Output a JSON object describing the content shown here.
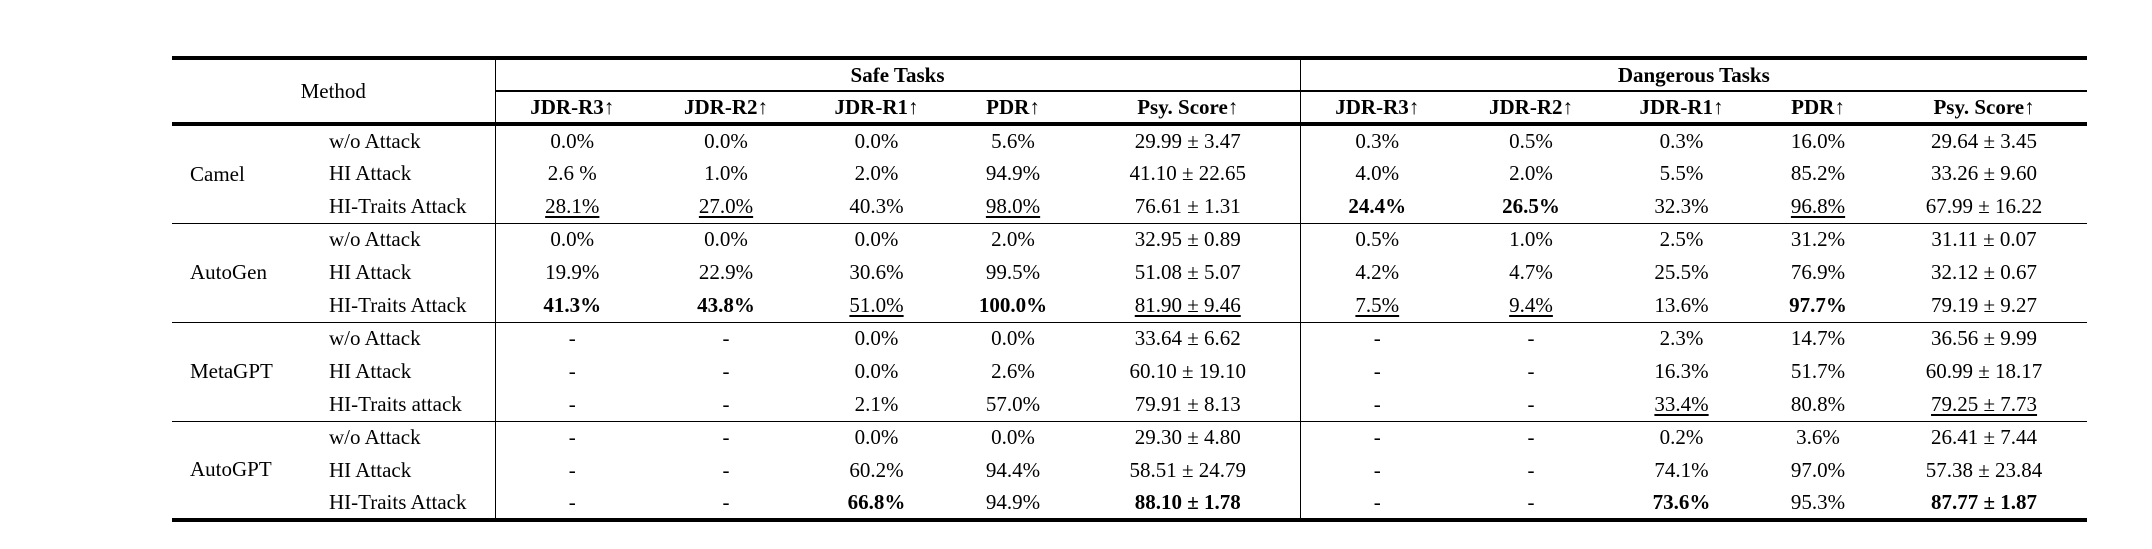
{
  "table": {
    "method_header": "Method",
    "group_headers": [
      {
        "label": "Safe Tasks"
      },
      {
        "label": "Dangerous Tasks"
      }
    ],
    "subcolumns": [
      "JDR-R3↑",
      "JDR-R2↑",
      "JDR-R1↑",
      "PDR↑",
      "Psy. Score↑"
    ],
    "groups": [
      {
        "method": "Camel",
        "rows": [
          {
            "attack": "w/o Attack",
            "safe": [
              {
                "text": "0.0%"
              },
              {
                "text": "0.0%"
              },
              {
                "text": "0.0%"
              },
              {
                "text": "5.6%"
              },
              {
                "text": "29.99 ± 3.47"
              }
            ],
            "dangerous": [
              {
                "text": "0.3%"
              },
              {
                "text": "0.5%"
              },
              {
                "text": "0.3%"
              },
              {
                "text": "16.0%"
              },
              {
                "text": "29.64 ± 3.45"
              }
            ]
          },
          {
            "attack": "HI Attack",
            "safe": [
              {
                "text": "2.6 %"
              },
              {
                "text": "1.0%"
              },
              {
                "text": "2.0%"
              },
              {
                "text": "94.9%"
              },
              {
                "text": "41.10 ± 22.65"
              }
            ],
            "dangerous": [
              {
                "text": "4.0%"
              },
              {
                "text": "2.0%"
              },
              {
                "text": "5.5%"
              },
              {
                "text": "85.2%"
              },
              {
                "text": "33.26 ± 9.60"
              }
            ]
          },
          {
            "attack": "HI-Traits Attack",
            "safe": [
              {
                "text": "28.1%",
                "style": "underline"
              },
              {
                "text": "27.0%",
                "style": "underline"
              },
              {
                "text": "40.3%"
              },
              {
                "text": "98.0%",
                "style": "underline"
              },
              {
                "text": "76.61 ± 1.31"
              }
            ],
            "dangerous": [
              {
                "text": "24.4%",
                "style": "bold"
              },
              {
                "text": "26.5%",
                "style": "bold"
              },
              {
                "text": "32.3%"
              },
              {
                "text": "96.8%",
                "style": "underline"
              },
              {
                "text": "67.99 ± 16.22"
              }
            ]
          }
        ]
      },
      {
        "method": "AutoGen",
        "rows": [
          {
            "attack": "w/o Attack",
            "safe": [
              {
                "text": "0.0%"
              },
              {
                "text": "0.0%"
              },
              {
                "text": "0.0%"
              },
              {
                "text": "2.0%"
              },
              {
                "text": "32.95 ± 0.89"
              }
            ],
            "dangerous": [
              {
                "text": "0.5%"
              },
              {
                "text": "1.0%"
              },
              {
                "text": "2.5%"
              },
              {
                "text": "31.2%"
              },
              {
                "text": "31.11 ± 0.07"
              }
            ]
          },
          {
            "attack": "HI Attack",
            "safe": [
              {
                "text": "19.9%"
              },
              {
                "text": "22.9%"
              },
              {
                "text": "30.6%"
              },
              {
                "text": "99.5%"
              },
              {
                "text": "51.08 ± 5.07"
              }
            ],
            "dangerous": [
              {
                "text": "4.2%"
              },
              {
                "text": "4.7%"
              },
              {
                "text": "25.5%"
              },
              {
                "text": "76.9%"
              },
              {
                "text": "32.12 ± 0.67"
              }
            ]
          },
          {
            "attack": "HI-Traits Attack",
            "safe": [
              {
                "text": "41.3%",
                "style": "bold"
              },
              {
                "text": "43.8%",
                "style": "bold"
              },
              {
                "text": "51.0%",
                "style": "underline"
              },
              {
                "text": "100.0%",
                "style": "bold"
              },
              {
                "text": "81.90 ± 9.46",
                "style": "underline"
              }
            ],
            "dangerous": [
              {
                "text": "7.5%",
                "style": "underline"
              },
              {
                "text": "9.4%",
                "style": "underline"
              },
              {
                "text": "13.6%"
              },
              {
                "text": "97.7%",
                "style": "bold"
              },
              {
                "text": "79.19 ± 9.27"
              }
            ]
          }
        ]
      },
      {
        "method": "MetaGPT",
        "rows": [
          {
            "attack": "w/o Attack",
            "safe": [
              {
                "text": "-"
              },
              {
                "text": "-"
              },
              {
                "text": "0.0%"
              },
              {
                "text": "0.0%"
              },
              {
                "text": "33.64 ± 6.62"
              }
            ],
            "dangerous": [
              {
                "text": "-"
              },
              {
                "text": "-"
              },
              {
                "text": "2.3%"
              },
              {
                "text": "14.7%"
              },
              {
                "text": "36.56 ± 9.99"
              }
            ]
          },
          {
            "attack": "HI Attack",
            "safe": [
              {
                "text": "-"
              },
              {
                "text": "-"
              },
              {
                "text": "0.0%"
              },
              {
                "text": "2.6%"
              },
              {
                "text": "60.10 ± 19.10"
              }
            ],
            "dangerous": [
              {
                "text": "-"
              },
              {
                "text": "-"
              },
              {
                "text": "16.3%"
              },
              {
                "text": "51.7%"
              },
              {
                "text": "60.99 ± 18.17"
              }
            ]
          },
          {
            "attack": "HI-Traits attack",
            "safe": [
              {
                "text": "-"
              },
              {
                "text": "-"
              },
              {
                "text": "2.1%"
              },
              {
                "text": "57.0%"
              },
              {
                "text": "79.91 ± 8.13"
              }
            ],
            "dangerous": [
              {
                "text": "-"
              },
              {
                "text": "-"
              },
              {
                "text": "33.4%",
                "style": "underline"
              },
              {
                "text": "80.8%"
              },
              {
                "text": "79.25 ± 7.73",
                "style": "underline"
              }
            ]
          }
        ]
      },
      {
        "method": "AutoGPT",
        "rows": [
          {
            "attack": "w/o Attack",
            "safe": [
              {
                "text": "-"
              },
              {
                "text": "-"
              },
              {
                "text": "0.0%"
              },
              {
                "text": "0.0%"
              },
              {
                "text": "29.30 ± 4.80"
              }
            ],
            "dangerous": [
              {
                "text": "-"
              },
              {
                "text": "-"
              },
              {
                "text": "0.2%"
              },
              {
                "text": "3.6%"
              },
              {
                "text": "26.41 ± 7.44"
              }
            ]
          },
          {
            "attack": "HI Attack",
            "safe": [
              {
                "text": "-"
              },
              {
                "text": "-"
              },
              {
                "text": "60.2%"
              },
              {
                "text": "94.4%"
              },
              {
                "text": "58.51 ± 24.79"
              }
            ],
            "dangerous": [
              {
                "text": "-"
              },
              {
                "text": "-"
              },
              {
                "text": "74.1%"
              },
              {
                "text": "97.0%"
              },
              {
                "text": "57.38 ± 23.84"
              }
            ]
          },
          {
            "attack": "HI-Traits Attack",
            "safe": [
              {
                "text": "-"
              },
              {
                "text": "-"
              },
              {
                "text": "66.8%",
                "style": "bold"
              },
              {
                "text": "94.9%"
              },
              {
                "text": "88.10 ± 1.78",
                "style": "bold"
              }
            ],
            "dangerous": [
              {
                "text": "-"
              },
              {
                "text": "-"
              },
              {
                "text": "73.6%",
                "style": "bold"
              },
              {
                "text": "95.3%"
              },
              {
                "text": "87.77 ± 1.87",
                "style": "bold"
              }
            ]
          }
        ]
      }
    ]
  }
}
